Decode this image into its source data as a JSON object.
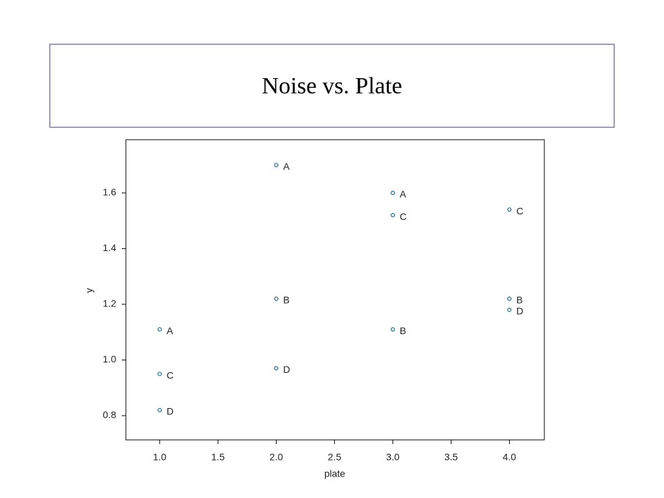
{
  "chart_data": {
    "type": "scatter",
    "title": "Noise vs. Plate",
    "x_label": "plate",
    "y_label": "y",
    "series": [
      {
        "color": "#1f6f8b",
        "x": [
          1,
          1,
          1,
          2,
          2,
          2,
          3,
          3,
          3,
          4,
          4,
          4
        ],
        "values": [
          1.11,
          0.95,
          0.82,
          1.7,
          1.22,
          0.97,
          1.6,
          1.52,
          1.11,
          1.54,
          1.22,
          1.18
        ],
        "labels": [
          "A",
          "C",
          "D",
          "A",
          "B",
          "D",
          "A",
          "C",
          "B",
          "C",
          "B",
          "D"
        ]
      }
    ],
    "xlim": [
      0.71,
      4.3
    ],
    "ylim": [
      0.713,
      1.791
    ],
    "xticks": [
      {
        "value": 1,
        "label": "1.0"
      },
      1.5,
      {
        "value": 2,
        "label": "2.0"
      },
      2.5,
      {
        "value": 3,
        "label": "3.0"
      },
      3.5,
      {
        "value": 4,
        "label": "4.0"
      }
    ],
    "yticks": [
      0.8,
      {
        "value": 1,
        "label": "1.0"
      },
      1.2,
      1.4,
      1.6
    ]
  }
}
